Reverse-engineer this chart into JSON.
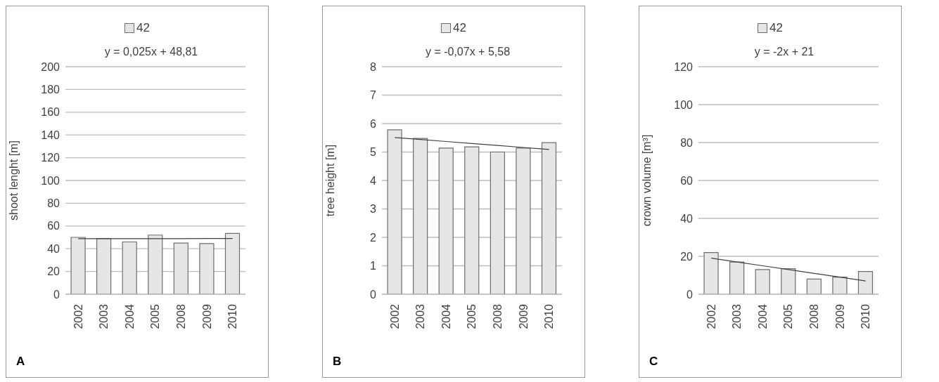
{
  "chart_data": [
    {
      "type": "bar",
      "categories": [
        "2002",
        "2003",
        "2004",
        "2005",
        "2008",
        "2009",
        "2010"
      ],
      "ylabel": "shoot lenght [m]",
      "ylim": [
        0,
        200
      ],
      "yticks": [
        0,
        20,
        40,
        60,
        80,
        100,
        120,
        140,
        160,
        180,
        200
      ],
      "grid": "y",
      "legend": "top",
      "marker": "none",
      "annotations": [
        "y = 0,025x + 48,81",
        "A"
      ],
      "series": [
        {
          "name": "42",
          "color": "#e6e6e6",
          "values": [
            50,
            49,
            46,
            52,
            45,
            44.5,
            53.5
          ]
        },
        {
          "type": "line",
          "color": "#404040",
          "values": [
            48.8,
            48.9,
            48.9,
            48.9,
            48.9,
            49,
            49
          ]
        }
      ]
    },
    {
      "type": "bar",
      "categories": [
        "2002",
        "2003",
        "2004",
        "2005",
        "2008",
        "2009",
        "2010"
      ],
      "ylabel": "tree height [m]",
      "ylim": [
        0,
        8
      ],
      "yticks": [
        0,
        1,
        2,
        3,
        4,
        5,
        6,
        7,
        8
      ],
      "grid": "y",
      "legend": "top",
      "marker": "none",
      "annotations": [
        "y = -0,07x + 5,58",
        "B"
      ],
      "series": [
        {
          "name": "42",
          "color": "#e6e6e6",
          "values": [
            5.78,
            5.48,
            5.14,
            5.18,
            5.0,
            5.14,
            5.33
          ]
        },
        {
          "type": "line",
          "color": "#404040",
          "values": [
            5.51,
            5.44,
            5.37,
            5.3,
            5.23,
            5.16,
            5.09
          ]
        }
      ]
    },
    {
      "type": "bar",
      "categories": [
        "2002",
        "2003",
        "2004",
        "2005",
        "2008",
        "2009",
        "2010"
      ],
      "ylabel": "crown volume [m³]",
      "ylim": [
        0,
        120
      ],
      "yticks": [
        0,
        20,
        40,
        60,
        80,
        100,
        120
      ],
      "grid": "y",
      "legend": "top",
      "marker": "none",
      "annotations": [
        "y = -2x + 21",
        "C"
      ],
      "series": [
        {
          "name": "42",
          "color": "#e6e6e6",
          "values": [
            22,
            17,
            13,
            13.5,
            8,
            9,
            12
          ]
        },
        {
          "type": "line",
          "color": "#404040",
          "values": [
            19,
            17,
            15,
            13,
            11,
            9,
            7
          ]
        }
      ]
    }
  ]
}
